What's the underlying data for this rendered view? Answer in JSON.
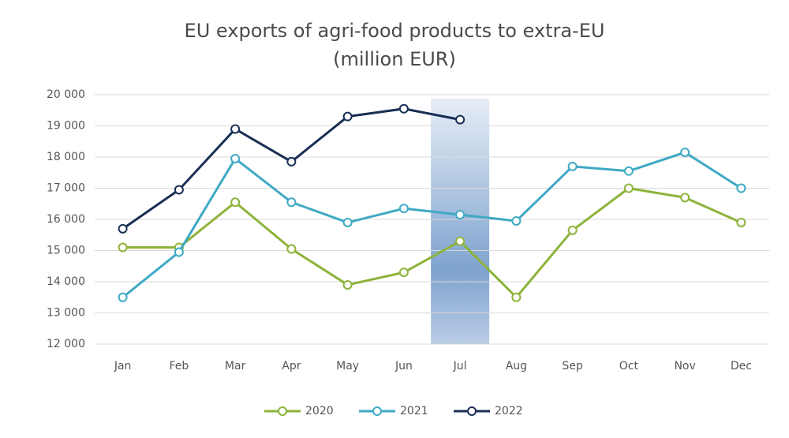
{
  "chart_data": {
    "type": "line",
    "title": "EU exports of agri-food products to extra-EU",
    "subtitle": "(million EUR)",
    "categories": [
      "Jan",
      "Feb",
      "Mar",
      "Apr",
      "May",
      "Jun",
      "Jul",
      "Aug",
      "Sep",
      "Oct",
      "Nov",
      "Dec"
    ],
    "series": [
      {
        "name": "2020",
        "color": "#8db33a",
        "values": [
          15100,
          15100,
          16550,
          15050,
          13900,
          14300,
          15300,
          13500,
          15650,
          17000,
          16700,
          15900
        ]
      },
      {
        "name": "2021",
        "color": "#3fa9c4",
        "values": [
          13500,
          14950,
          17950,
          16550,
          15900,
          16350,
          16150,
          15950,
          17700,
          17550,
          18150,
          17000
        ]
      },
      {
        "name": "2022",
        "color": "#1a2f55",
        "values": [
          15700,
          16950,
          18900,
          17850,
          19300,
          19550,
          19200,
          null,
          null,
          null,
          null,
          null
        ]
      }
    ],
    "ylim": [
      12000,
      20000
    ],
    "yticks": [
      {
        "value": 12000,
        "label": "12 000"
      },
      {
        "value": 13000,
        "label": "13 000"
      },
      {
        "value": 14000,
        "label": "14 000"
      },
      {
        "value": 15000,
        "label": "15 000"
      },
      {
        "value": 16000,
        "label": "16 000"
      },
      {
        "value": 17000,
        "label": "17 000"
      },
      {
        "value": 18000,
        "label": "18 000"
      },
      {
        "value": 19000,
        "label": "19 000"
      },
      {
        "value": 20000,
        "label": "20 000"
      }
    ],
    "grid": true,
    "highlight": "Jul",
    "legend": "bottom"
  }
}
